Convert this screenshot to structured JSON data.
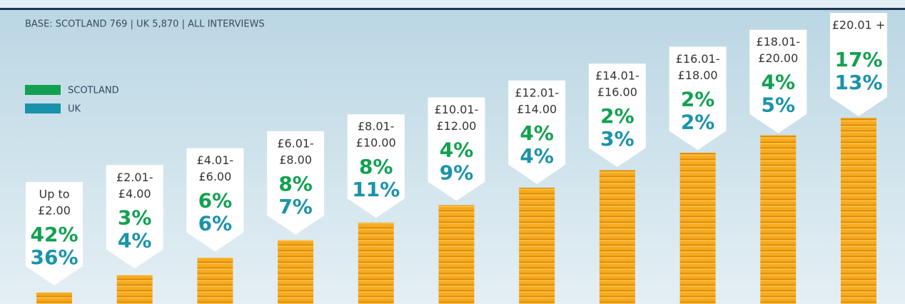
{
  "base": "BASE: SCOTLAND 769  |  UK 5,870  |  ALL INTERVIEWS",
  "legend": [
    {
      "name": "SCOTLAND",
      "color": "#12a150"
    },
    {
      "name": "UK",
      "color": "#1a93aa"
    }
  ],
  "bands": [
    {
      "label": [
        "Up to",
        "£2.00"
      ],
      "scotland": "42%",
      "uk": "36%"
    },
    {
      "label": [
        "£2.01-",
        "£4.00"
      ],
      "scotland": "3%",
      "uk": "4%"
    },
    {
      "label": [
        "£4.01-",
        "£6.00"
      ],
      "scotland": "6%",
      "uk": "6%"
    },
    {
      "label": [
        "£6.01-",
        "£8.00"
      ],
      "scotland": "8%",
      "uk": "7%"
    },
    {
      "label": [
        "£8.01-",
        "£10.00"
      ],
      "scotland": "8%",
      "uk": "11%"
    },
    {
      "label": [
        "£10.01-",
        "£12.00"
      ],
      "scotland": "4%",
      "uk": "9%"
    },
    {
      "label": [
        "£12.01-",
        "£14.00"
      ],
      "scotland": "4%",
      "uk": "4%"
    },
    {
      "label": [
        "£14.01-",
        "£16.00"
      ],
      "scotland": "2%",
      "uk": "3%"
    },
    {
      "label": [
        "£16.01-",
        "£18.00"
      ],
      "scotland": "2%",
      "uk": "2%"
    },
    {
      "label": [
        "£18.01-",
        "£20.00"
      ],
      "scotland": "4%",
      "uk": "5%"
    },
    {
      "label": [
        "£20.01 +"
      ],
      "scotland": "17%",
      "uk": "13%"
    }
  ]
}
